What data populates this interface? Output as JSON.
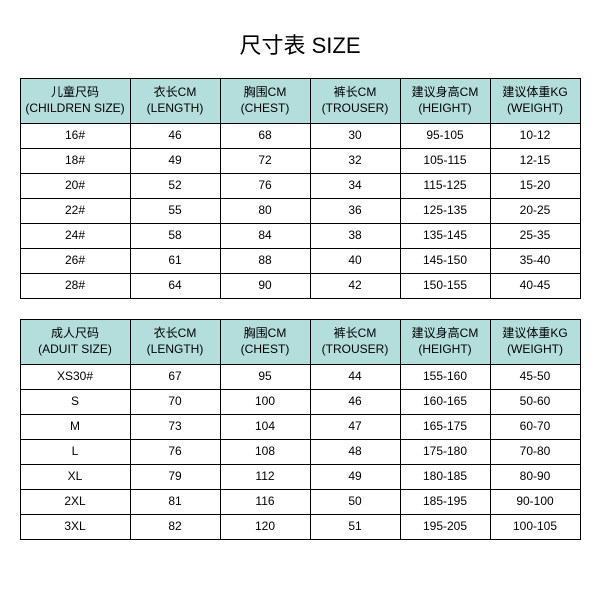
{
  "title": "尺寸表 SIZE",
  "headerColor": "#b3dedc",
  "borderColor": "#000000",
  "childHeaders": [
    "儿童尺码\n(CHILDREN SIZE)",
    "衣长CM\n(LENGTH)",
    "胸围CM\n(CHEST)",
    "裤长CM\n(TROUSER)",
    "建议身高CM\n(HEIGHT)",
    "建议体重KG\n(WEIGHT)"
  ],
  "childRows": [
    [
      "16#",
      "46",
      "68",
      "30",
      "95-105",
      "10-12"
    ],
    [
      "18#",
      "49",
      "72",
      "32",
      "105-115",
      "12-15"
    ],
    [
      "20#",
      "52",
      "76",
      "34",
      "115-125",
      "15-20"
    ],
    [
      "22#",
      "55",
      "80",
      "36",
      "125-135",
      "20-25"
    ],
    [
      "24#",
      "58",
      "84",
      "38",
      "135-145",
      "25-35"
    ],
    [
      "26#",
      "61",
      "88",
      "40",
      "145-150",
      "35-40"
    ],
    [
      "28#",
      "64",
      "90",
      "42",
      "150-155",
      "40-45"
    ]
  ],
  "adultHeaders": [
    "成人尺码\n(ADUIT SIZE)",
    "衣长CM\n(LENGTH)",
    "胸围CM\n(CHEST)",
    "裤长CM\n(TROUSER)",
    "建议身高CM\n(HEIGHT)",
    "建议体重KG\n(WEIGHT)"
  ],
  "adultRows": [
    [
      "XS30#",
      "67",
      "95",
      "44",
      "155-160",
      "45-50"
    ],
    [
      "S",
      "70",
      "100",
      "46",
      "160-165",
      "50-60"
    ],
    [
      "M",
      "73",
      "104",
      "47",
      "165-175",
      "60-70"
    ],
    [
      "L",
      "76",
      "108",
      "48",
      "175-180",
      "70-80"
    ],
    [
      "XL",
      "79",
      "112",
      "49",
      "180-185",
      "80-90"
    ],
    [
      "2XL",
      "81",
      "116",
      "50",
      "185-195",
      "90-100"
    ],
    [
      "3XL",
      "82",
      "120",
      "51",
      "195-205",
      "100-105"
    ]
  ]
}
